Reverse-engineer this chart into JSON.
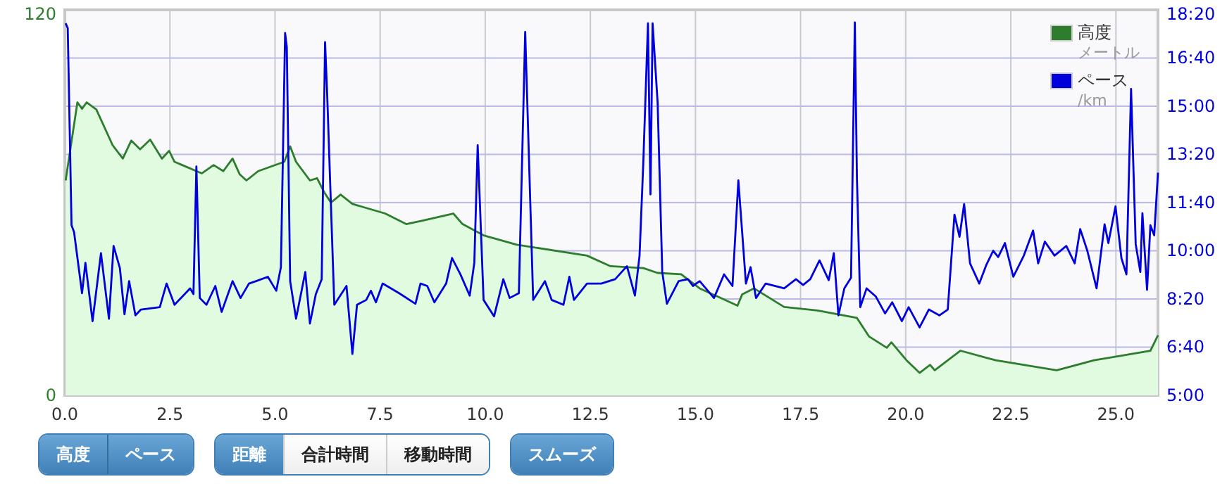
{
  "chart_data": {
    "type": "line",
    "xlim": [
      0,
      26.0
    ],
    "xticks": [
      {
        "value": 0,
        "label": "0.0"
      },
      {
        "value": 2.5,
        "label": "2.5"
      },
      {
        "value": 5,
        "label": "5.0"
      },
      {
        "value": 7.5,
        "label": "7.5"
      },
      {
        "value": 10,
        "label": "10.0"
      },
      {
        "value": 12.5,
        "label": "12.5"
      },
      {
        "value": 15,
        "label": "15.0"
      },
      {
        "value": 17.5,
        "label": "17.5"
      },
      {
        "value": 20,
        "label": "20.0"
      },
      {
        "value": 22.5,
        "label": "22.5"
      },
      {
        "value": 25,
        "label": "25.0"
      }
    ],
    "ylim": [
      0,
      120
    ],
    "yticks": [
      0,
      120
    ],
    "y2lim": [
      300,
      1100
    ],
    "y2ticks": [
      {
        "value": 300,
        "label": "5:00"
      },
      {
        "value": 400,
        "label": "6:40"
      },
      {
        "value": 500,
        "label": "8:20"
      },
      {
        "value": 600,
        "label": "10:00"
      },
      {
        "value": 700,
        "label": "11:40"
      },
      {
        "value": 800,
        "label": "13:20"
      },
      {
        "value": 900,
        "label": "15:00"
      },
      {
        "value": 1000,
        "label": "16:40"
      },
      {
        "value": 1100,
        "label": "18:20"
      }
    ],
    "grid": true,
    "legend": "top right",
    "series": [
      {
        "name": "高度",
        "type": "area",
        "color": "#2e7d2e",
        "x": [
          0.02,
          0.3,
          0.41,
          0.52,
          0.75,
          1.14,
          1.38,
          1.58,
          1.79,
          2.03,
          2.31,
          2.48,
          2.61,
          3.26,
          3.54,
          3.77,
          3.99,
          4.16,
          4.32,
          4.6,
          5.22,
          5.36,
          5.5,
          5.83,
          6.0,
          6.17,
          6.33,
          6.56,
          6.84,
          7.62,
          8.12,
          8.51,
          9.24,
          9.46,
          9.96,
          10.75,
          12.42,
          12.98,
          13.76,
          14.1,
          14.66,
          15.1,
          16.0,
          16.11,
          16.39,
          17.11,
          17.9,
          18.84,
          19.13,
          19.55,
          19.66,
          20.02,
          20.33,
          20.58,
          20.69,
          21.3,
          22.14,
          23.59,
          24.48,
          25.82,
          26.0
        ],
        "values": [
          66.9,
          91.2,
          89.2,
          91.2,
          89.0,
          77.8,
          73.7,
          79.3,
          76.6,
          79.6,
          73.7,
          76.1,
          72.7,
          69.1,
          71.7,
          69.8,
          73.7,
          68.8,
          66.9,
          69.8,
          72.7,
          77.5,
          72.7,
          66.9,
          67.6,
          63.2,
          60.0,
          62.5,
          59.6,
          56.6,
          53.3,
          54.4,
          56.6,
          53.3,
          49.8,
          46.9,
          43.5,
          40.2,
          39.6,
          38.1,
          37.7,
          33.3,
          27.9,
          31.4,
          33.3,
          27.5,
          26.4,
          24.1,
          18.3,
          14.8,
          16.5,
          10.9,
          7.0,
          9.5,
          7.8,
          13.9,
          10.9,
          7.8,
          10.9,
          13.9,
          18.7
        ]
      },
      {
        "name": "ペース",
        "axis": "y2",
        "color": "#0000dd",
        "x": [
          0.02,
          0.07,
          0.16,
          0.22,
          0.41,
          0.49,
          0.66,
          0.86,
          1.05,
          1.16,
          1.31,
          1.42,
          1.53,
          1.68,
          1.81,
          2.26,
          2.42,
          2.61,
          2.98,
          3.06,
          3.13,
          3.21,
          3.37,
          3.58,
          3.73,
          3.99,
          4.18,
          4.38,
          4.55,
          4.83,
          5.03,
          5.14,
          5.24,
          5.28,
          5.36,
          5.5,
          5.72,
          5.83,
          5.97,
          6.11,
          6.19,
          6.24,
          6.41,
          6.7,
          6.84,
          6.95,
          7.17,
          7.28,
          7.4,
          7.56,
          7.95,
          8.34,
          8.46,
          8.62,
          8.79,
          9.07,
          9.21,
          9.41,
          9.63,
          9.74,
          9.82,
          9.96,
          10.21,
          10.43,
          10.58,
          10.8,
          10.95,
          11.14,
          11.42,
          11.58,
          11.86,
          12.0,
          12.11,
          12.42,
          12.76,
          13.09,
          13.37,
          13.56,
          13.67,
          13.76,
          13.87,
          13.93,
          13.98,
          14.1,
          14.21,
          14.32,
          14.6,
          14.82,
          14.94,
          15.1,
          15.44,
          15.68,
          15.88,
          16.02,
          16.2,
          16.31,
          16.44,
          16.67,
          17.11,
          17.39,
          17.56,
          17.73,
          17.95,
          18.17,
          18.29,
          18.4,
          18.54,
          18.7,
          18.79,
          18.84,
          18.92,
          19.07,
          19.29,
          19.51,
          19.68,
          19.91,
          20.07,
          20.33,
          20.55,
          20.8,
          21.0,
          21.16,
          21.28,
          21.39,
          21.53,
          21.75,
          21.92,
          22.08,
          22.2,
          22.36,
          22.56,
          22.81,
          23.03,
          23.15,
          23.31,
          23.54,
          23.82,
          24.02,
          24.15,
          24.32,
          24.54,
          24.73,
          24.82,
          24.99,
          25.13,
          25.25,
          25.36,
          25.47,
          25.58,
          25.63,
          25.74,
          25.82,
          25.91,
          26.0
        ],
        "values": [
          1072,
          1062,
          653,
          639,
          512,
          575,
          454,
          595,
          459,
          610,
          564,
          468,
          537,
          466,
          478,
          483,
          532,
          488,
          522,
          510,
          775,
          502,
          488,
          527,
          473,
          537,
          502,
          532,
          537,
          546,
          517,
          566,
          1052,
          1023,
          537,
          459,
          556,
          449,
          510,
          541,
          1033,
          926,
          488,
          527,
          386,
          488,
          498,
          517,
          493,
          532,
          512,
          490,
          532,
          527,
          493,
          532,
          585,
          551,
          507,
          575,
          819,
          498,
          464,
          541,
          502,
          512,
          1054,
          498,
          537,
          498,
          488,
          546,
          498,
          532,
          532,
          541,
          568,
          507,
          590,
          785,
          1072,
          717,
          1072,
          907,
          556,
          490,
          537,
          541,
          527,
          537,
          502,
          551,
          527,
          746,
          532,
          566,
          502,
          532,
          522,
          541,
          529,
          541,
          580,
          539,
          595,
          466,
          522,
          544,
          1074,
          751,
          483,
          522,
          505,
          470,
          493,
          454,
          483,
          441,
          478,
          466,
          478,
          675,
          629,
          697,
          574,
          532,
          571,
          600,
          587,
          616,
          546,
          590,
          642,
          574,
          619,
          590,
          610,
          574,
          645,
          600,
          522,
          655,
          616,
          692,
          585,
          551,
          936,
          614,
          556,
          678,
          519,
          653,
          632,
          762
        ]
      }
    ],
    "annotations": [
      "メートル",
      "/km",
      "高度",
      "ペース",
      "距離",
      "合計時間",
      "移動時間",
      "スムーズ"
    ]
  }
}
